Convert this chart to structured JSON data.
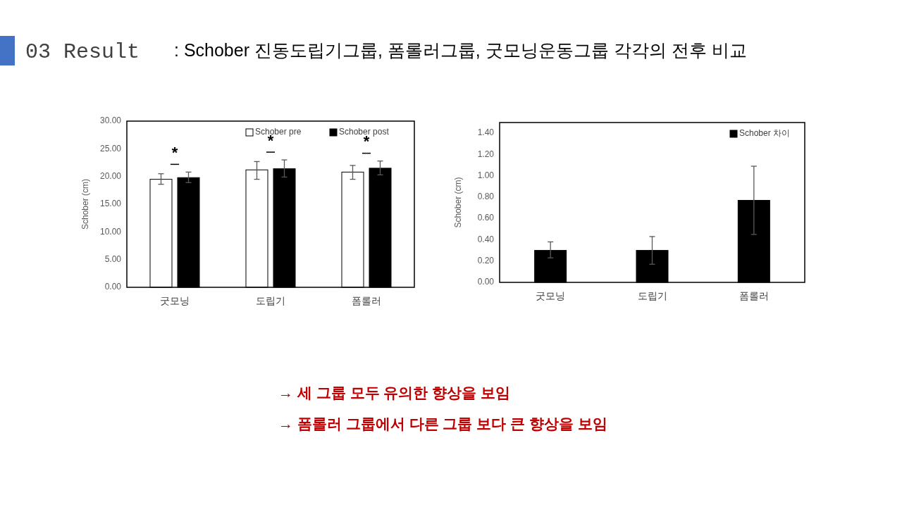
{
  "chart_data": [
    {
      "type": "bar",
      "title": "03 Result",
      "subtitle": ":  Schober 진동도립기그룹, 폼롤러그룹, 굿모닝운동그룹 각각의 전후 비교",
      "ylabel": "Schober (cm)",
      "categories": [
        "굿모닝",
        "도립기",
        "폼롤러"
      ],
      "series": [
        {
          "name": "Schober pre",
          "color": "#ffffff",
          "values": [
            19.5,
            21.2,
            20.8
          ],
          "errors": [
            [
              18.6,
              20.5
            ],
            [
              19.5,
              22.7
            ],
            [
              19.5,
              22.0
            ]
          ]
        },
        {
          "name": "Schober post",
          "color": "#000000",
          "values": [
            19.8,
            21.4,
            21.5
          ],
          "errors": [
            [
              18.9,
              20.8
            ],
            [
              19.9,
              23.0
            ],
            [
              20.3,
              22.8
            ]
          ]
        }
      ],
      "ylim": [
        0,
        30
      ],
      "yticks": [
        {
          "value": 0,
          "label": "0.00"
        },
        {
          "value": 5,
          "label": "5.00"
        },
        {
          "value": 10,
          "label": "10.00"
        },
        {
          "value": 15,
          "label": "15.00"
        },
        {
          "value": 20,
          "label": "20.00"
        },
        {
          "value": 25,
          "label": "25.00"
        },
        {
          "value": 30,
          "label": "30.00"
        }
      ],
      "grid": false,
      "legend": "top right",
      "annotations": [
        "*",
        "*",
        "*",
        "→ 세 그룹 모두 유의한 향상을 보임",
        "→ 폼롤러 그룹에서 다른 그룹 보다 큰 향상을 보임"
      ]
    },
    {
      "type": "bar",
      "ylabel": "Schober (cm)",
      "categories": [
        "굿모닝",
        "도립기",
        "폼롤러"
      ],
      "series": [
        {
          "name": "Schober 차이",
          "color": "#000000",
          "values": [
            0.3,
            0.3,
            0.77
          ],
          "errors": [
            [
              0.23,
              0.38
            ],
            [
              0.17,
              0.43
            ],
            [
              0.45,
              1.09
            ]
          ]
        }
      ],
      "ylim": [
        0,
        1.5
      ],
      "yticks": [
        {
          "value": 0,
          "label": "0.00"
        },
        {
          "value": 0.2,
          "label": "0.20"
        },
        {
          "value": 0.4,
          "label": "0.40"
        },
        {
          "value": 0.6,
          "label": "0.60"
        },
        {
          "value": 0.8,
          "label": "0.80"
        },
        {
          "value": 1.0,
          "label": "1.00"
        },
        {
          "value": 1.2,
          "label": "1.20"
        },
        {
          "value": 1.4,
          "label": "1.40"
        }
      ],
      "grid": false,
      "legend": "top right"
    }
  ]
}
